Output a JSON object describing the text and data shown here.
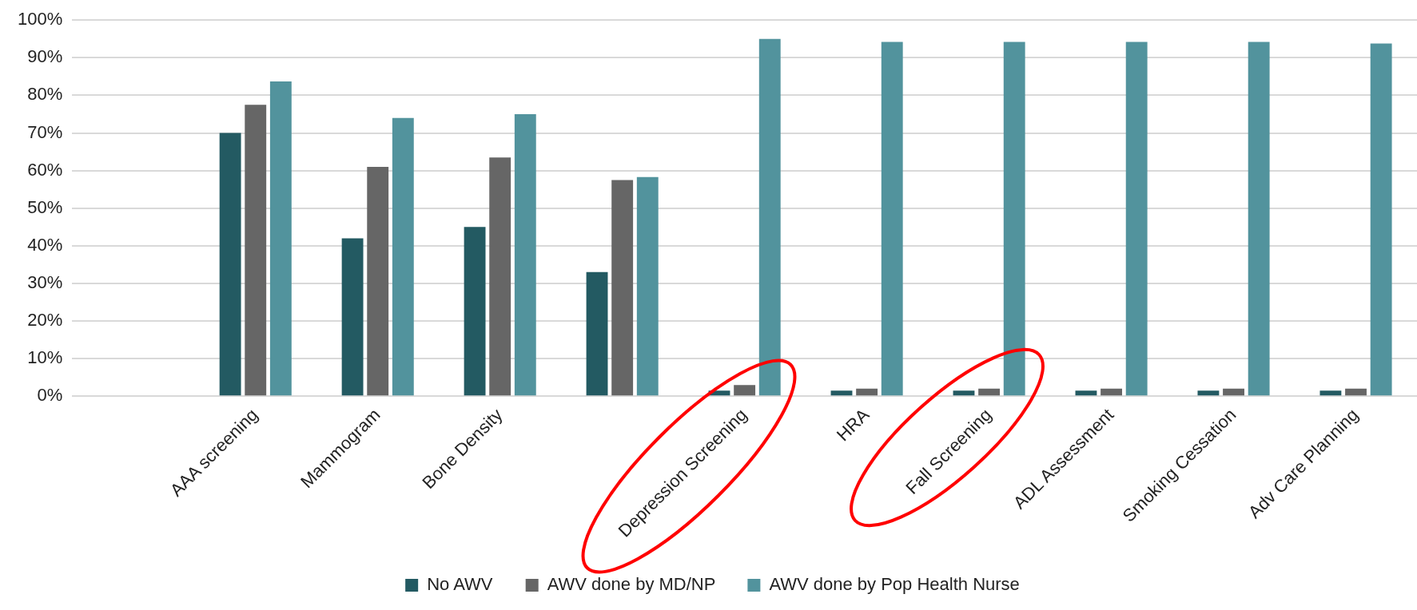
{
  "chart_data": {
    "type": "bar",
    "categories": [
      null,
      "AAA screening",
      "Mammogram",
      "Bone Density",
      null,
      "Depression Screening",
      "HRA",
      "Fall Screening",
      "ADL Assessment",
      "Smoking Cessation",
      "Adv Care Planning"
    ],
    "series": [
      {
        "name": "No AWV",
        "color": "#235a62",
        "values": [
          null,
          70,
          42,
          45,
          33,
          1.5,
          1.5,
          1.5,
          1.5,
          1.5,
          1.5
        ]
      },
      {
        "name": "AWV done by MD/NP",
        "color": "#666666",
        "values": [
          null,
          77.5,
          61,
          63.5,
          57.5,
          3,
          2,
          2,
          2,
          2,
          2
        ]
      },
      {
        "name": "AWV done by Pop Health Nurse",
        "color": "#52939d",
        "values": [
          null,
          83.7,
          74,
          75,
          58.3,
          95,
          94.2,
          94.2,
          94.2,
          94.2,
          93.8
        ]
      }
    ],
    "ylim": [
      0,
      100
    ],
    "yticks": [
      {
        "value": 0,
        "label": "0%"
      },
      {
        "value": 10,
        "label": "10%"
      },
      {
        "value": 20,
        "label": "20%"
      },
      {
        "value": 30,
        "label": "30%"
      },
      {
        "value": 40,
        "label": "40%"
      },
      {
        "value": 50,
        "label": "50%"
      },
      {
        "value": 60,
        "label": "60%"
      },
      {
        "value": 70,
        "label": "70%"
      },
      {
        "value": 80,
        "label": "80%"
      },
      {
        "value": 90,
        "label": "90%"
      },
      {
        "value": 100,
        "label": "100%"
      }
    ],
    "grid": "y",
    "legend": "bottom"
  }
}
